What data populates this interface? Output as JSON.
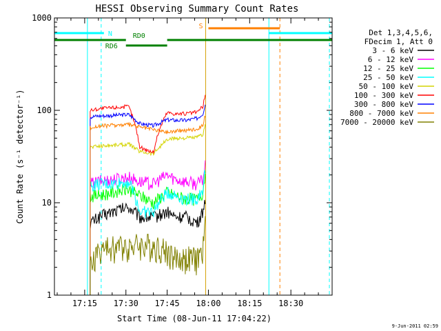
{
  "chart_data": {
    "type": "line",
    "title": "HESSI Observing Summary Count Rates",
    "xlabel": "Start Time (08-Jun-11 17:04:22)",
    "ylabel": "Count Rate (s⁻¹ detector⁻¹)",
    "yscale": "log",
    "ylim": [
      1,
      1000
    ],
    "xlim": [
      "17:04",
      "18:45"
    ],
    "x_ticks": [
      "17:15",
      "17:30",
      "17:45",
      "18:00",
      "18:15",
      "18:30"
    ],
    "y_ticks": [
      "1",
      "10",
      "100",
      "1000"
    ],
    "footer": "9-Jun-2011 02:59",
    "legend": {
      "placement": "right",
      "header": [
        "Det 1,3,4,5,6,",
        "FDecim 1, Att 0"
      ]
    },
    "series": [
      {
        "name": "3 - 6 keV",
        "color": "#000000",
        "x": [
          "17:17",
          "17:20",
          "17:25",
          "17:31",
          "17:35",
          "17:40",
          "17:45",
          "17:48",
          "17:52",
          "17:56",
          "17:58",
          "17:59"
        ],
        "values": [
          6,
          7,
          8,
          9,
          7,
          7,
          8,
          7,
          7,
          6,
          8,
          12
        ]
      },
      {
        "name": "6 - 12 keV",
        "color": "#ff00ff",
        "x": [
          "17:17",
          "17:20",
          "17:25",
          "17:31",
          "17:35",
          "17:40",
          "17:45",
          "17:48",
          "17:52",
          "17:56",
          "17:58",
          "17:59"
        ],
        "values": [
          16,
          17,
          18,
          19,
          17,
          16,
          20,
          18,
          17,
          16,
          18,
          28
        ]
      },
      {
        "name": "12 - 25 keV",
        "color": "#00ff00",
        "x": [
          "17:17",
          "17:20",
          "17:25",
          "17:31",
          "17:35",
          "17:40",
          "17:45",
          "17:48",
          "17:52",
          "17:56",
          "17:58",
          "17:59"
        ],
        "values": [
          12,
          12,
          13,
          14,
          12,
          10,
          13,
          12,
          11,
          11,
          13,
          22
        ]
      },
      {
        "name": "25 - 50 keV",
        "color": "#00ffff",
        "x": [
          "17:17",
          "17:20",
          "17:25",
          "17:31",
          "17:35",
          "17:40",
          "17:45",
          "17:48",
          "17:52",
          "17:56",
          "17:58",
          "17:59"
        ],
        "values": [
          15,
          16,
          16,
          17,
          8,
          8,
          13,
          12,
          11,
          11,
          14,
          24
        ]
      },
      {
        "name": "50 - 100 keV",
        "color": "#d4d400",
        "x": [
          "17:17",
          "17:20",
          "17:25",
          "17:31",
          "17:35",
          "17:40",
          "17:45",
          "17:48",
          "17:52",
          "17:56",
          "17:58",
          "17:59"
        ],
        "values": [
          40,
          41,
          42,
          43,
          36,
          34,
          48,
          50,
          50,
          51,
          55,
          70
        ]
      },
      {
        "name": "100 - 300 keV",
        "color": "#ff0000",
        "x": [
          "17:17",
          "17:20",
          "17:25",
          "17:31",
          "17:35",
          "17:40",
          "17:45",
          "17:48",
          "17:52",
          "17:56",
          "17:58",
          "17:59"
        ],
        "values": [
          100,
          104,
          107,
          110,
          40,
          35,
          95,
          92,
          92,
          96,
          110,
          150
        ]
      },
      {
        "name": "300 - 800 keV",
        "color": "#0000ff",
        "x": [
          "17:17",
          "17:20",
          "17:25",
          "17:31",
          "17:35",
          "17:40",
          "17:45",
          "17:48",
          "17:52",
          "17:56",
          "17:58",
          "17:59"
        ],
        "values": [
          85,
          87,
          88,
          90,
          72,
          68,
          79,
          78,
          78,
          82,
          92,
          120
        ]
      },
      {
        "name": "800 - 7000 keV",
        "color": "#ff8000",
        "x": [
          "17:17",
          "17:20",
          "17:25",
          "17:31",
          "17:35",
          "17:40",
          "17:45",
          "17:48",
          "17:52",
          "17:56",
          "17:58",
          "17:59"
        ],
        "values": [
          65,
          67,
          69,
          70,
          66,
          62,
          58,
          60,
          61,
          63,
          70,
          90
        ]
      },
      {
        "name": "7000 - 20000 keV",
        "color": "#808000",
        "x": [
          "17:17",
          "17:20",
          "17:25",
          "17:31",
          "17:35",
          "17:40",
          "17:45",
          "17:48",
          "17:52",
          "17:56",
          "17:58",
          "17:59"
        ],
        "values": [
          2,
          3,
          3.3,
          3.5,
          3.5,
          3.5,
          3,
          2.5,
          2.5,
          2.5,
          3,
          6
        ]
      }
    ],
    "status_bars": [
      {
        "label": "N",
        "color": "#00ffff",
        "segments": [
          [
            "17:04",
            "17:22"
          ],
          [
            "18:22",
            "18:45"
          ]
        ]
      },
      {
        "label": "S",
        "color": "#ff8000",
        "segments": [
          [
            "18:00",
            "18:26"
          ]
        ]
      },
      {
        "label": "RD0",
        "color": "#008000",
        "segments": [
          [
            "17:04",
            "17:30"
          ],
          [
            "17:45",
            "18:45"
          ]
        ]
      },
      {
        "label": "RD6",
        "color": "#008000",
        "segments": [
          [
            "17:30",
            "17:45"
          ]
        ]
      }
    ],
    "markers": [
      {
        "x": "17:04",
        "color": "#00ffff",
        "style": "solid"
      },
      {
        "x": "17:21",
        "color": "#00ffff",
        "style": "dashed"
      },
      {
        "x": "17:16",
        "color": "#00ffff",
        "style": "solid"
      },
      {
        "x": "17:59",
        "color": "#d4a000",
        "style": "solid"
      },
      {
        "x": "18:22",
        "color": "#00ffff",
        "style": "solid"
      },
      {
        "x": "18:26",
        "color": "#ff8000",
        "style": "dashed"
      },
      {
        "x": "18:44",
        "color": "#00ffff",
        "style": "dashed"
      }
    ]
  }
}
